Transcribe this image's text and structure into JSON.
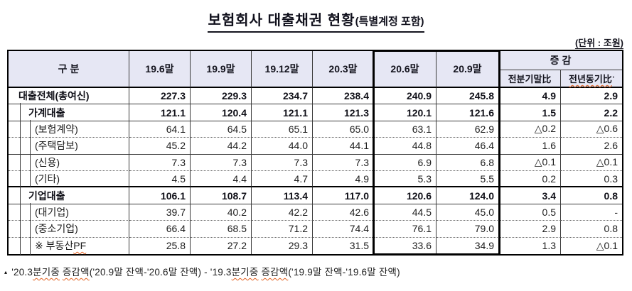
{
  "title": {
    "main": "보험회사 대출채권 현황",
    "paren": "(특별계정 포함)"
  },
  "unit_label": "(단위 : 조원)",
  "colors": {
    "header_bg": "#e6e7f4",
    "border": "#000000",
    "spellcheck_wavy": "#e2601f"
  },
  "table": {
    "col_group_header": "구  분",
    "period_headers": [
      "19.6말",
      "19.9말",
      "19.12말",
      "20.3말",
      "20.6말",
      "20.9말"
    ],
    "change_header": "증  감",
    "change_subheaders": [
      {
        "label": "전분기말比",
        "mark": "",
        "wavy": false
      },
      {
        "label": "전년동기比",
        "mark": "'",
        "wavy": true
      }
    ],
    "rows": [
      {
        "label": "대출전체(총여신)",
        "indent": 0,
        "values": [
          "227.3",
          "229.3",
          "234.7",
          "238.4",
          "240.9",
          "245.8",
          "4.9",
          "2.9"
        ]
      },
      {
        "label": "가계대출",
        "indent": 1,
        "values": [
          "121.1",
          "120.4",
          "121.1",
          "121.3",
          "120.1",
          "121.6",
          "1.5",
          "2.2"
        ]
      },
      {
        "label": "(보험계약)",
        "indent": 2,
        "values": [
          "64.1",
          "64.5",
          "65.1",
          "65.0",
          "63.1",
          "62.9",
          "△0.2",
          "△0.6"
        ]
      },
      {
        "label": "(주택담보)",
        "indent": 2,
        "values": [
          "45.2",
          "44.2",
          "44.0",
          "44.1",
          "44.8",
          "46.4",
          "1.6",
          "2.6"
        ]
      },
      {
        "label": "(신용)",
        "indent": 2,
        "values": [
          "7.3",
          "7.3",
          "7.3",
          "7.3",
          "6.9",
          "6.8",
          "△0.1",
          "△0.1"
        ]
      },
      {
        "label": "(기타)",
        "indent": 2,
        "values": [
          "4.5",
          "4.4",
          "4.7",
          "4.9",
          "5.3",
          "5.5",
          "0.2",
          "0.3"
        ]
      },
      {
        "label": "기업대출",
        "indent": 1,
        "values": [
          "106.1",
          "108.7",
          "113.4",
          "117.0",
          "120.6",
          "124.0",
          "3.4",
          "0.8"
        ]
      },
      {
        "label": "(대기업)",
        "indent": 2,
        "values": [
          "39.7",
          "40.2",
          "42.2",
          "42.6",
          "44.5",
          "45.0",
          "0.5",
          "-"
        ]
      },
      {
        "label": "(중소기업)",
        "indent": 2,
        "values": [
          "66.4",
          "68.5",
          "71.2",
          "74.4",
          "76.1",
          "79.0",
          "2.9",
          "0.8"
        ]
      },
      {
        "label": "※ 부동산PF",
        "indent": 2,
        "values": [
          "25.8",
          "27.2",
          "29.3",
          "31.5",
          "33.6",
          "34.9",
          "1.3",
          "△0.1"
        ]
      }
    ]
  },
  "footnote": {
    "marker": "▴",
    "text": "'20.3분기중 증감액('20.9말 잔액-'20.6말 잔액) - '19.3분기중 증감액('19.9말 잔액-'19.6말 잔액)"
  }
}
